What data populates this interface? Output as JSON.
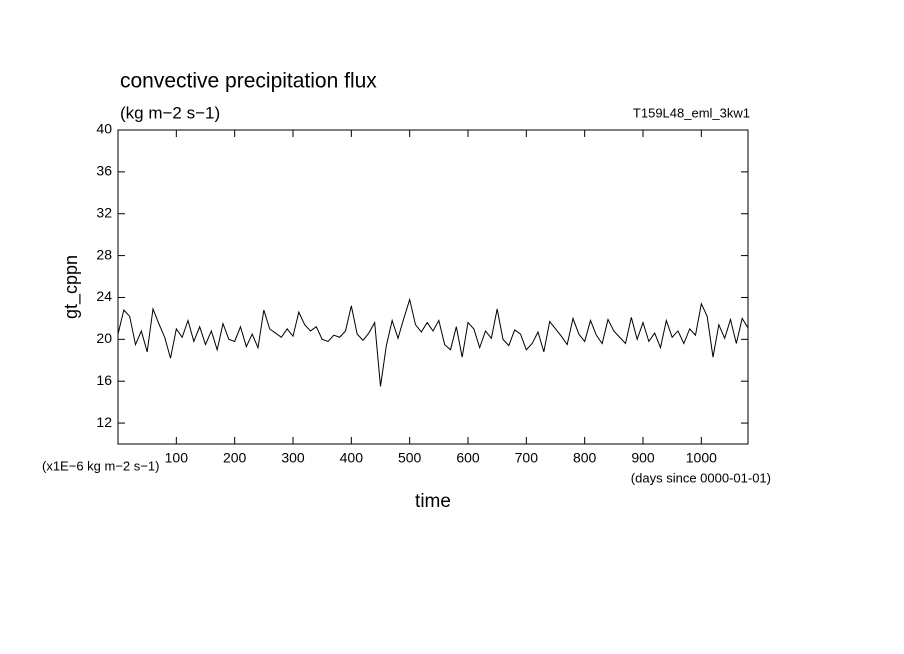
{
  "chart_data": {
    "type": "line",
    "title": "convective precipitation flux",
    "subtitle": "(kg m−2 s−1)",
    "run_label": "T159L48_eml_3kw1",
    "ylabel": "gt_cppn",
    "xlabel": "time",
    "y_unit_label": "(x1E−6 kg m−2 s−1)",
    "x_unit_label": "(days since 0000-01-01)",
    "xlim": [
      0,
      1080
    ],
    "ylim": [
      10,
      40
    ],
    "xticks": [
      100,
      200,
      300,
      400,
      500,
      600,
      700,
      800,
      900,
      1000
    ],
    "yticks": [
      12,
      16,
      20,
      24,
      28,
      32,
      36,
      40
    ],
    "x": [
      0,
      10,
      20,
      30,
      40,
      50,
      60,
      70,
      80,
      90,
      100,
      110,
      120,
      130,
      140,
      150,
      160,
      170,
      180,
      190,
      200,
      210,
      220,
      230,
      240,
      250,
      260,
      270,
      280,
      290,
      300,
      310,
      320,
      330,
      340,
      350,
      360,
      370,
      380,
      390,
      400,
      410,
      420,
      430,
      440,
      450,
      460,
      470,
      480,
      490,
      500,
      510,
      520,
      530,
      540,
      550,
      560,
      570,
      580,
      590,
      600,
      610,
      620,
      630,
      640,
      650,
      660,
      670,
      680,
      690,
      700,
      710,
      720,
      730,
      740,
      750,
      760,
      770,
      780,
      790,
      800,
      810,
      820,
      830,
      840,
      850,
      860,
      870,
      880,
      890,
      900,
      910,
      920,
      930,
      940,
      950,
      960,
      970,
      980,
      990,
      1000,
      1010,
      1020,
      1030,
      1040,
      1050,
      1060,
      1070,
      1080
    ],
    "series": [
      {
        "color": "#000000",
        "values": [
          20.5,
          22.8,
          22.2,
          19.5,
          20.8,
          18.8,
          22.9,
          21.5,
          20.2,
          18.2,
          21.0,
          20.2,
          21.8,
          19.8,
          21.2,
          19.5,
          20.8,
          19.0,
          21.5,
          20.0,
          19.8,
          21.2,
          19.3,
          20.5,
          19.2,
          22.8,
          21.0,
          20.6,
          20.2,
          21.0,
          20.3,
          22.6,
          21.4,
          20.8,
          21.2,
          20.0,
          19.8,
          20.4,
          20.2,
          20.8,
          23.2,
          20.5,
          19.9,
          20.6,
          21.6,
          15.5,
          19.4,
          21.8,
          20.1,
          22.0,
          23.8,
          21.4,
          20.7,
          21.6,
          20.8,
          21.8,
          19.5,
          19.0,
          21.2,
          18.3,
          21.6,
          21.0,
          19.2,
          20.8,
          20.1,
          22.9,
          20.0,
          19.4,
          20.9,
          20.5,
          19.0,
          19.6,
          20.7,
          18.8,
          21.7,
          21.0,
          20.3,
          19.5,
          22.0,
          20.5,
          19.8,
          21.8,
          20.4,
          19.6,
          21.9,
          20.8,
          20.2,
          19.6,
          22.1,
          20.0,
          21.6,
          19.8,
          20.6,
          19.2,
          21.8,
          20.2,
          20.8,
          19.6,
          21.0,
          20.4,
          23.4,
          22.2,
          18.3,
          21.4,
          20.1,
          21.9,
          19.6,
          22.0,
          21.1
        ]
      }
    ]
  }
}
